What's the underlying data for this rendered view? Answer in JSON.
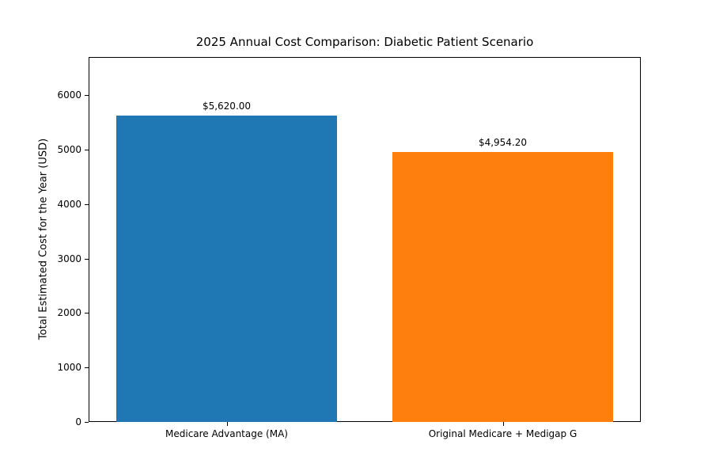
{
  "chart_data": {
    "type": "bar",
    "title": "2025 Annual Cost Comparison: Diabetic Patient Scenario",
    "xlabel": "",
    "ylabel": "Total Estimated Cost for the Year (USD)",
    "categories": [
      "Medicare Advantage (MA)",
      "Original Medicare + Medigap G"
    ],
    "values": [
      5620.0,
      4954.2
    ],
    "value_labels": [
      "$5,620.00",
      "$4,954.20"
    ],
    "bar_colors": [
      "#1f77b4",
      "#ff7f0e"
    ],
    "yticks": [
      0,
      1000,
      2000,
      3000,
      4000,
      5000,
      6000
    ],
    "ylim": [
      0,
      6700
    ],
    "grid": false,
    "legend_position": "none",
    "text_color": "#000000",
    "axis_color": "#000000"
  }
}
